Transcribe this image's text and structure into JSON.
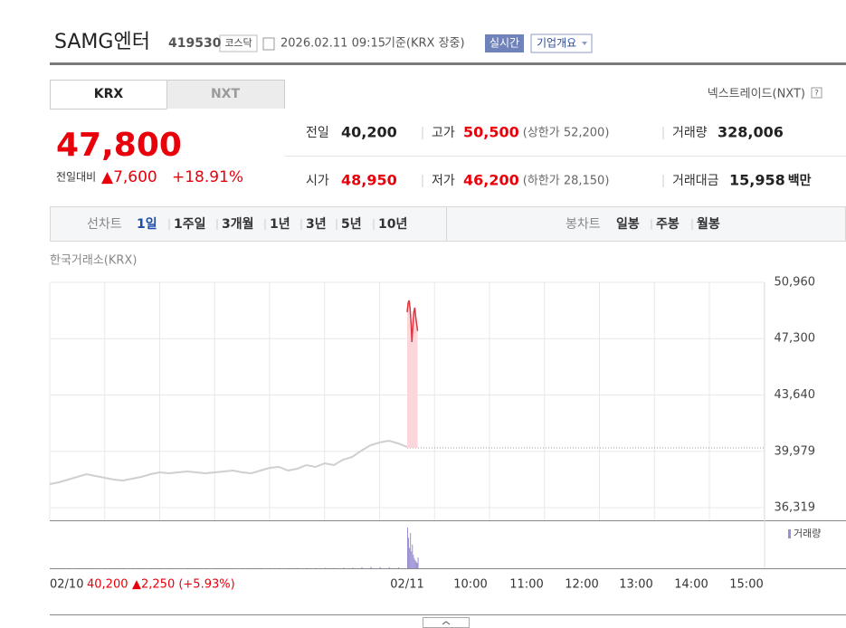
{
  "header": {
    "name": "SAMG엔터",
    "code": "419530",
    "market": "코스닥",
    "datetime": "2026.02.11 09:15",
    "basis": "기준(KRX 장중)",
    "realtime_button": "실시간",
    "company_button": "기업개요"
  },
  "tabs": [
    "KRX",
    "NXT"
  ],
  "nxt_link": "넥스트레이드(NXT)",
  "help": "?",
  "quote": {
    "price": "47,800",
    "change_label": "전일대비",
    "change": "▲7,600",
    "change_pct": "+18.91%"
  },
  "stats": [
    {
      "label": "전일",
      "value": "40,200"
    },
    {
      "label": "고가",
      "value": "50,500",
      "note": "(상한가 52,200)"
    },
    {
      "label": "거래량",
      "value": "328,006"
    },
    {
      "label": "시가",
      "value": "48,950"
    },
    {
      "label": "저가",
      "value": "46,200",
      "note": "(하한가 28,150)"
    },
    {
      "label": "거래대금",
      "value": "15,958",
      "unit": "백만"
    }
  ],
  "periods": {
    "label": "선차트",
    "items": [
      "1일",
      "1주일",
      "3개월",
      "1년",
      "3년",
      "5년",
      "10년"
    ]
  },
  "candles": {
    "label": "봉차트",
    "items": [
      "일봉",
      "주봉",
      "월봉"
    ]
  },
  "chart_data": {
    "type": "line",
    "title": "한국거래소(KRX)",
    "ylim": [
      36319,
      50960
    ],
    "yticks": [
      {
        "value": 50960,
        "label": "50,960"
      },
      {
        "value": 47300,
        "label": "47,300"
      },
      {
        "value": 43640,
        "label": "43,640"
      },
      {
        "value": 39979,
        "label": "39,979"
      },
      {
        "value": 36319,
        "label": "36,319"
      }
    ],
    "xticks": [
      "02/10",
      "02/11",
      "10:00",
      "11:00",
      "12:00",
      "13:00",
      "14:00",
      "15:00"
    ],
    "reference": {
      "value": 40200,
      "label": "40,200"
    },
    "reference_change": "▲2,250 (+5.93%)",
    "volume_legend": "거래량",
    "previous": {
      "color": "#cfcfcf",
      "values": [
        37848,
        37965,
        38142,
        38318,
        38495,
        38377,
        38259,
        38142,
        38083,
        38201,
        38318,
        38495,
        38612,
        38553,
        38612,
        38671,
        38612,
        38553,
        38612,
        38671,
        38730,
        38612,
        38553,
        38730,
        38906,
        38965,
        38730,
        38847,
        39083,
        38965,
        39200,
        39083,
        39435,
        39612,
        40023,
        40376,
        40553,
        40670,
        40494,
        40259
      ],
      "volumes": [
        300,
        200,
        250,
        300,
        200,
        250,
        300,
        200,
        250,
        300,
        200,
        250,
        300,
        200,
        250,
        300,
        200,
        250,
        300,
        200,
        250,
        300,
        200,
        250,
        300,
        400,
        300,
        400,
        500,
        400,
        600,
        500,
        700,
        900,
        1500,
        2000,
        1800,
        1500,
        1200,
        1000
      ]
    },
    "today": {
      "color": "#e0353d",
      "fill": "#fbd6da",
      "volume_color": "#9a8fd2",
      "values": [
        49020,
        49608,
        49784,
        49314,
        48432,
        47079,
        48138,
        49020,
        49314,
        48726,
        48255,
        47800
      ],
      "volumes": [
        60000,
        45000,
        30000,
        52000,
        25000,
        35000,
        20000,
        15000,
        12000,
        10000,
        8000,
        16000
      ]
    }
  }
}
